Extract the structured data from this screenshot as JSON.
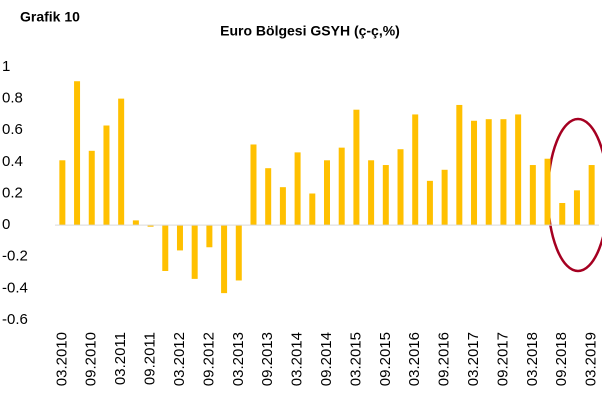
{
  "chart_data": {
    "type": "bar",
    "label": "Grafik 10",
    "title": "Euro Bölgesi GSYH (ç-ç,%)",
    "categories": [
      "03.2010",
      null,
      "09.2010",
      null,
      "03.2011",
      null,
      "09.2011",
      null,
      "03.2012",
      null,
      "09.2012",
      null,
      "03.2013",
      null,
      "09.2013",
      null,
      "03.2014",
      null,
      "09.2014",
      null,
      "03.2015",
      null,
      "09.2015",
      null,
      "03.2016",
      null,
      "09.2016",
      null,
      "03.2017",
      null,
      "09.2017",
      null,
      "03.2018",
      null,
      "09.2018",
      null,
      "03.2019"
    ],
    "values": [
      0.41,
      0.91,
      0.47,
      0.63,
      0.8,
      0.03,
      -0.01,
      -0.29,
      -0.16,
      -0.34,
      -0.14,
      -0.43,
      -0.35,
      0.51,
      0.36,
      0.24,
      0.46,
      0.2,
      0.41,
      0.49,
      0.73,
      0.41,
      0.38,
      0.48,
      0.7,
      0.28,
      0.35,
      0.76,
      0.66,
      0.67,
      0.67,
      0.7,
      0.38,
      0.42,
      0.14,
      0.22,
      0.38
    ],
    "color": "#FFC000",
    "ylim": [
      -0.6,
      1
    ],
    "yticks": [
      -0.6,
      -0.4,
      -0.2,
      0,
      0.2,
      0.4,
      0.6,
      0.8,
      1
    ]
  }
}
